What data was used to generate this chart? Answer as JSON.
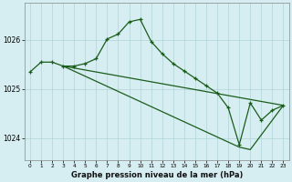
{
  "title": "Graphe pression niveau de la mer (hPa)",
  "background_color": "#d6eef2",
  "grid_color": "#b0d4d8",
  "line_color": "#1a5c1a",
  "marker_color": "#1a5c1a",
  "xlim": [
    -0.5,
    23.5
  ],
  "ylim": [
    1023.55,
    1026.75
  ],
  "yticks": [
    1024,
    1025,
    1026
  ],
  "xticks": [
    0,
    1,
    2,
    3,
    4,
    5,
    6,
    7,
    8,
    9,
    10,
    11,
    12,
    13,
    14,
    15,
    16,
    17,
    18,
    19,
    20,
    21,
    22,
    23
  ],
  "series": [
    {
      "x": [
        0,
        1,
        2,
        3,
        4,
        5,
        6,
        7,
        8,
        9,
        10,
        11,
        12,
        13,
        14,
        15,
        16,
        17,
        18,
        19,
        20,
        21,
        22,
        23
      ],
      "y": [
        1025.35,
        1025.55,
        1025.55,
        1025.47,
        1025.47,
        1025.52,
        1025.62,
        1026.02,
        1026.12,
        1026.37,
        1026.42,
        1025.97,
        1025.72,
        1025.52,
        1025.37,
        1025.22,
        1025.07,
        1024.92,
        1024.62,
        1023.87,
        1024.72,
        1024.37,
        1024.57,
        1024.67
      ]
    },
    {
      "x": [
        3,
        23
      ],
      "y": [
        1025.47,
        1024.67
      ]
    },
    {
      "x": [
        3,
        19,
        20,
        23
      ],
      "y": [
        1025.47,
        1023.82,
        1023.77,
        1024.67
      ]
    }
  ]
}
